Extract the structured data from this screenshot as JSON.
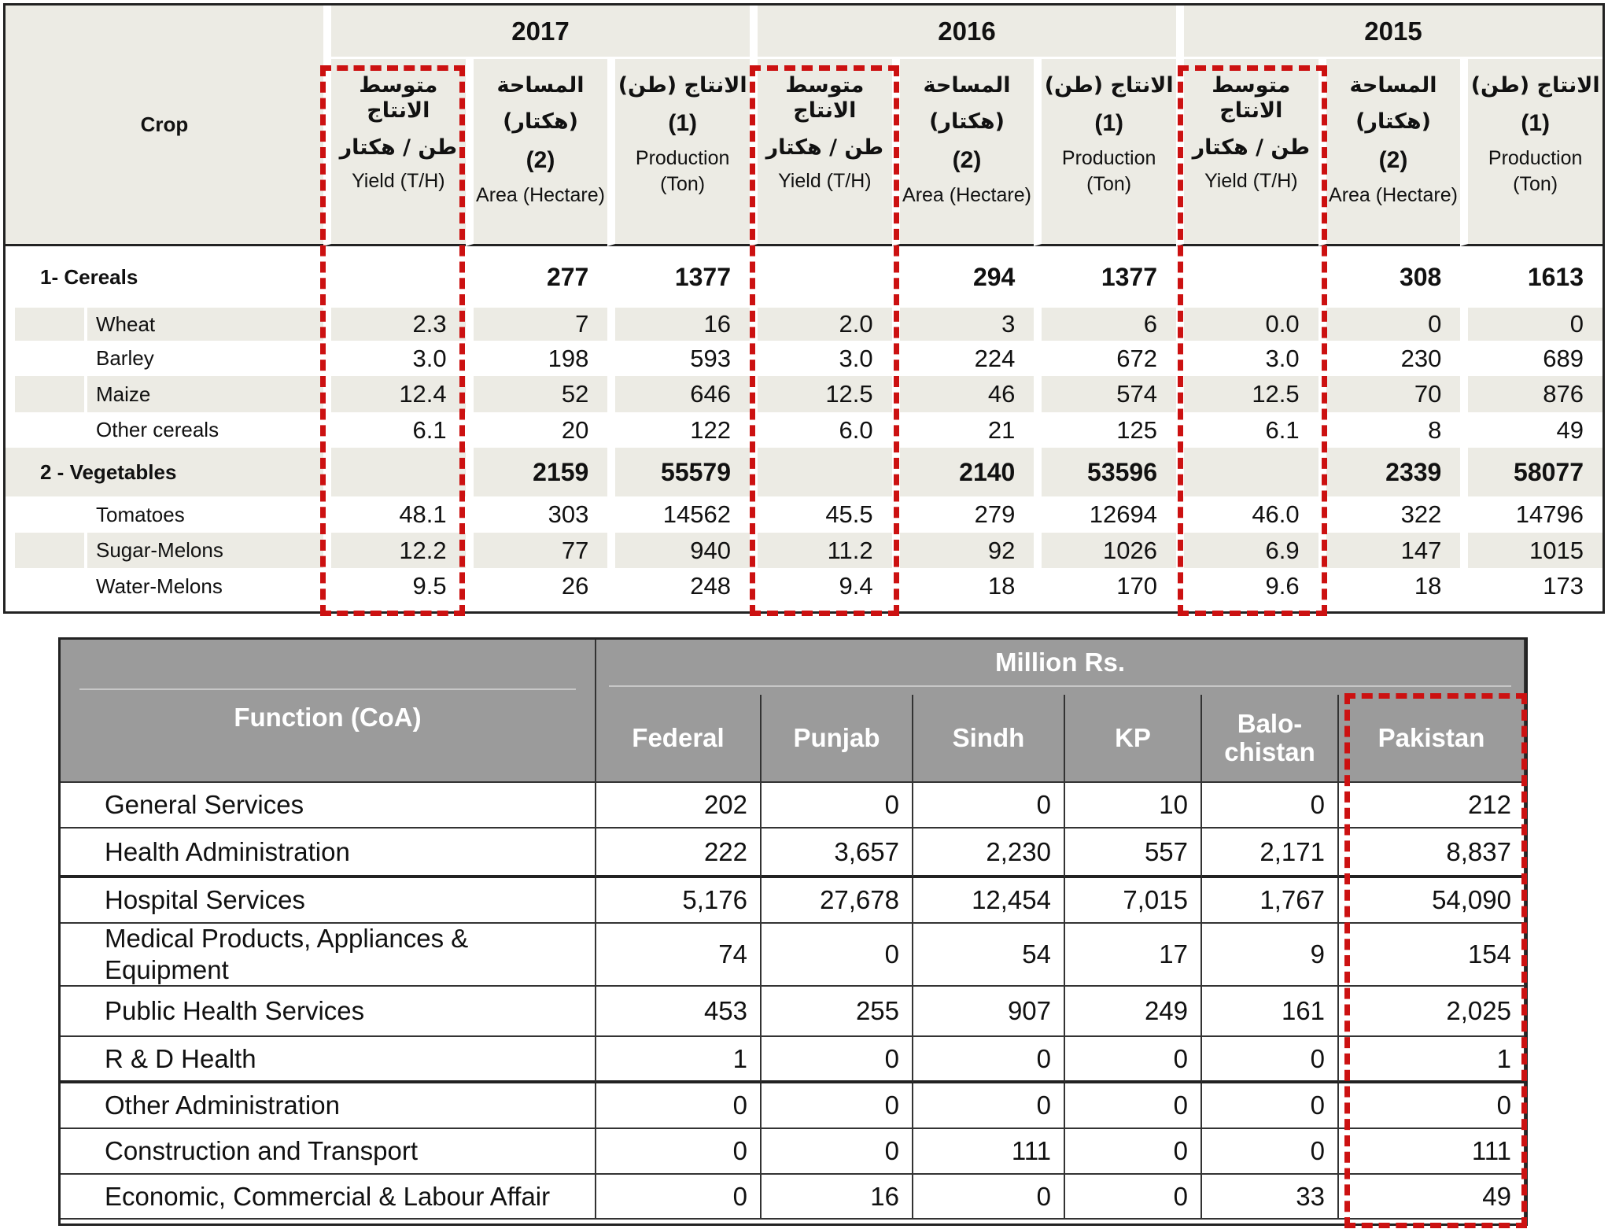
{
  "crop_table": {
    "crop_header": "Crop",
    "years": [
      "2017",
      "2016",
      "2015"
    ],
    "subheaders": [
      {
        "ar1": "متوسط الانتاج",
        "ar2": "طن / هكتار",
        "num": "",
        "en": "Yield (T/H)"
      },
      {
        "ar1": "المساحة",
        "ar2": "(هكتار)",
        "num": "(2)",
        "en": "Area (Hectare)"
      },
      {
        "ar1": "الانتاج (طن)",
        "ar2": "",
        "num": "(1)",
        "en": "Production (Ton)"
      }
    ],
    "rows": [
      {
        "label": "1- Cereals",
        "type": "category",
        "values": [
          "",
          "277",
          "1377",
          "",
          "294",
          "1377",
          "",
          "308",
          "1613"
        ]
      },
      {
        "label": "Wheat",
        "type": "crop",
        "values": [
          "2.3",
          "7",
          "16",
          "2.0",
          "3",
          "6",
          "0.0",
          "0",
          "0"
        ]
      },
      {
        "label": "Barley",
        "type": "crop",
        "values": [
          "3.0",
          "198",
          "593",
          "3.0",
          "224",
          "672",
          "3.0",
          "230",
          "689"
        ]
      },
      {
        "label": "Maize",
        "type": "crop",
        "values": [
          "12.4",
          "52",
          "646",
          "12.5",
          "46",
          "574",
          "12.5",
          "70",
          "876"
        ]
      },
      {
        "label": "Other cereals",
        "type": "crop",
        "values": [
          "6.1",
          "20",
          "122",
          "6.0",
          "21",
          "125",
          "6.1",
          "8",
          "49"
        ]
      },
      {
        "label": "2 - Vegetables",
        "type": "category",
        "values": [
          "",
          "2159",
          "55579",
          "",
          "2140",
          "53596",
          "",
          "2339",
          "58077"
        ]
      },
      {
        "label": "Tomatoes",
        "type": "crop",
        "values": [
          "48.1",
          "303",
          "14562",
          "45.5",
          "279",
          "12694",
          "46.0",
          "322",
          "14796"
        ]
      },
      {
        "label": "Sugar-Melons",
        "type": "crop",
        "values": [
          "12.2",
          "77",
          "940",
          "11.2",
          "92",
          "1026",
          "6.9",
          "147",
          "1015"
        ]
      },
      {
        "label": "Water-Melons",
        "type": "crop",
        "values": [
          "9.5",
          "26",
          "248",
          "9.4",
          "18",
          "170",
          "9.6",
          "18",
          "173"
        ]
      }
    ]
  },
  "health_table": {
    "function_header": "Function (CoA)",
    "unit_header": "Million Rs.",
    "columns": [
      "Federal",
      "Punjab",
      "Sindh",
      "KP",
      "Balo-chistan",
      "Pakistan"
    ],
    "rows": [
      {
        "label": "General Services",
        "values": [
          "202",
          "0",
          "0",
          "10",
          "0",
          "212"
        ]
      },
      {
        "label": "Health Administration",
        "values": [
          "222",
          "3,657",
          "2,230",
          "557",
          "2,171",
          "8,837"
        ]
      },
      {
        "label": "Hospital Services",
        "values": [
          "5,176",
          "27,678",
          "12,454",
          "7,015",
          "1,767",
          "54,090"
        ]
      },
      {
        "label": "Medical Products, Appliances & Equipment",
        "values": [
          "74",
          "0",
          "54",
          "17",
          "9",
          "154"
        ]
      },
      {
        "label": "Public Health Services",
        "values": [
          "453",
          "255",
          "907",
          "249",
          "161",
          "2,025"
        ]
      },
      {
        "label": "R & D Health",
        "values": [
          "1",
          "0",
          "0",
          "0",
          "0",
          "1"
        ]
      },
      {
        "label": "Other Administration",
        "values": [
          "0",
          "0",
          "0",
          "0",
          "0",
          "0"
        ]
      },
      {
        "label": "Construction and Transport",
        "values": [
          "0",
          "0",
          "111",
          "0",
          "0",
          "111"
        ]
      },
      {
        "label": "Economic, Commercial & Labour Affair",
        "values": [
          "0",
          "16",
          "0",
          "0",
          "33",
          "49"
        ]
      }
    ]
  },
  "highlight_color": "#cc1111"
}
